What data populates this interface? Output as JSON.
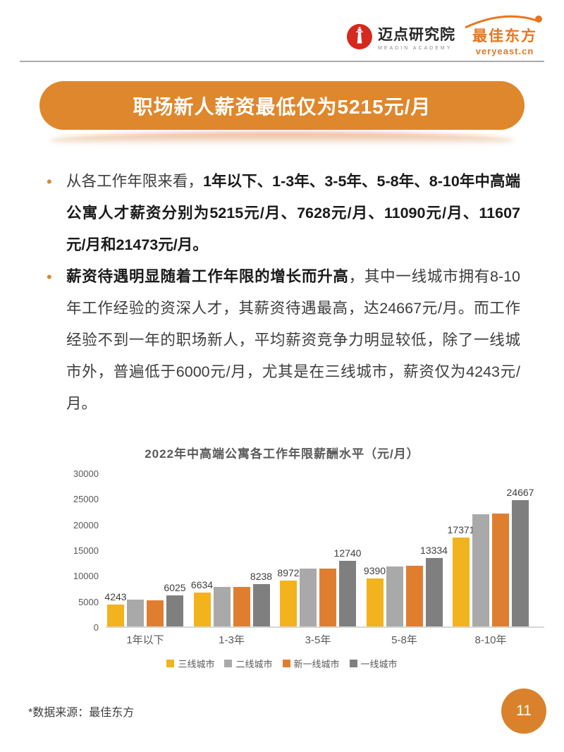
{
  "header": {
    "meadin_logo": {
      "title": "迈点研究院",
      "subtitle": "MEADIN ACADEMY"
    },
    "veryeast_logo": {
      "title": "最佳东方",
      "subtitle": "veryeast.cn"
    }
  },
  "banner": {
    "title": "职场新人薪资最低仅为5215元/月"
  },
  "icons": {
    "bullet": "•"
  },
  "bullets": [
    {
      "prefix": "从各工作年限来看，",
      "bold": "1年以下、1-3年、3-5年、5-8年、8-10年中高端公寓人才薪资分别为5215元/月、7628元/月、11090元/月、11607元/月和21473元/月。",
      "suffix": ""
    },
    {
      "prefix": "",
      "bold": "薪资待遇明显随着工作年限的增长而升高",
      "suffix": "，其中一线城市拥有8-10年工作经验的资深人才，其薪资待遇最高，达24667元/月。而工作经验不到一年的职场新人，平均薪资竞争力明显较低，除了一线城市外，普遍低于6000元/月，尤其是在三线城市，薪资仅为4243元/月。"
    }
  ],
  "chart_data": {
    "type": "bar",
    "title": "2022年中高端公寓各工作年限薪酬水平（元/月）",
    "categories": [
      "1年以下",
      "1-3年",
      "3-5年",
      "5-8年",
      "8-10年"
    ],
    "series": [
      {
        "key": "tier3-city",
        "name": "三线城市",
        "color": "#F2B31D",
        "values": [
          4243,
          6634,
          8972,
          9390,
          17371
        ],
        "labels_shown": true
      },
      {
        "key": "tier2-city",
        "name": "二线城市",
        "color": "#A9A9A9",
        "values": [
          5200,
          7700,
          11250,
          11750,
          21900
        ],
        "labels_shown": false
      },
      {
        "key": "new-tier1-city",
        "name": "新一线城市",
        "color": "#E07E30",
        "values": [
          5150,
          7680,
          11300,
          11850,
          22050
        ],
        "labels_shown": false
      },
      {
        "key": "tier1-city",
        "name": "一线城市",
        "color": "#7F7F7F",
        "values": [
          6025,
          8238,
          12740,
          13334,
          24667
        ],
        "labels_shown": true
      }
    ],
    "ylim": [
      0,
      30000
    ],
    "ytick_step": 5000,
    "grid": false,
    "legend_position": "bottom"
  },
  "footer": {
    "source_note": "*数据来源：最佳东方",
    "page_number": "11"
  }
}
